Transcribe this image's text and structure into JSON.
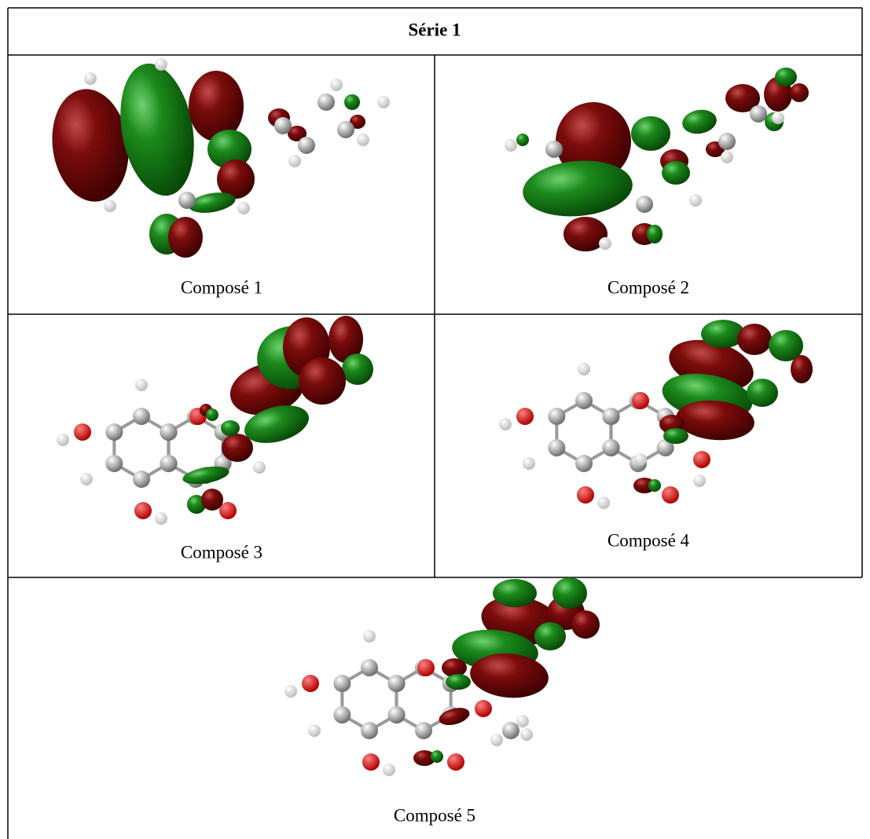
{
  "table": {
    "title": "Série 1",
    "cells": [
      {
        "label": "Composé 1"
      },
      {
        "label": "Composé 2"
      },
      {
        "label": "Composé 3"
      },
      {
        "label": "Composé 4"
      },
      {
        "label": "Composé 5"
      }
    ]
  }
}
